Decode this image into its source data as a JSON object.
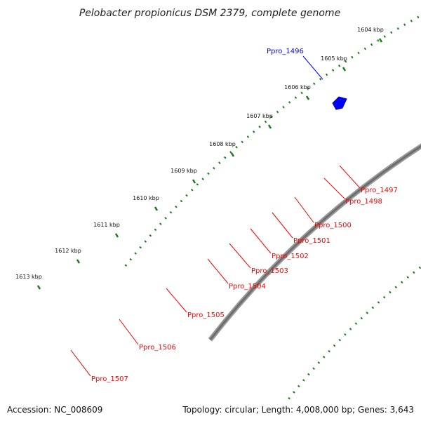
{
  "title": "Pelobacter propionicus DSM 2379, complete genome",
  "colors": {
    "cds": "#ff0000",
    "cds_highlight": "#0000ff",
    "feature_cyan": "#00ffff",
    "backbone": "#808080",
    "rrna": "#c0c0c0",
    "trna": "#ff8c00",
    "misc": "#33cc33",
    "tick": "#1a7a1a"
  },
  "ticks": [
    "1604 kbp",
    "1605 kbp",
    "1606 kbp",
    "1607 kbp",
    "1608 kbp",
    "1609 kbp",
    "1610 kbp",
    "1611 kbp",
    "1612 kbp",
    "1613 kbp"
  ],
  "genes": [
    {
      "name": "Ppro_1496",
      "color": "#0000ff"
    },
    {
      "name": "Ppro_1497",
      "color": "#ff0000"
    },
    {
      "name": "Ppro_1498",
      "color": "#ff0000"
    },
    {
      "name": "Ppro_1500",
      "color": "#ff0000"
    },
    {
      "name": "Ppro_1501",
      "color": "#ff0000"
    },
    {
      "name": "Ppro_1502",
      "color": "#ff0000"
    },
    {
      "name": "Ppro_1503",
      "color": "#ff0000"
    },
    {
      "name": "Ppro_1504",
      "color": "#ff0000"
    },
    {
      "name": "Ppro_1505",
      "color": "#ff0000"
    },
    {
      "name": "Ppro_1506",
      "color": "#ff0000"
    },
    {
      "name": "Ppro_1507",
      "color": "#ff0000"
    }
  ],
  "footer": {
    "accession": "Accession: NC_008609",
    "summary": "Topology: circular; Length: 4,008,000 bp; Genes: 3,643"
  }
}
